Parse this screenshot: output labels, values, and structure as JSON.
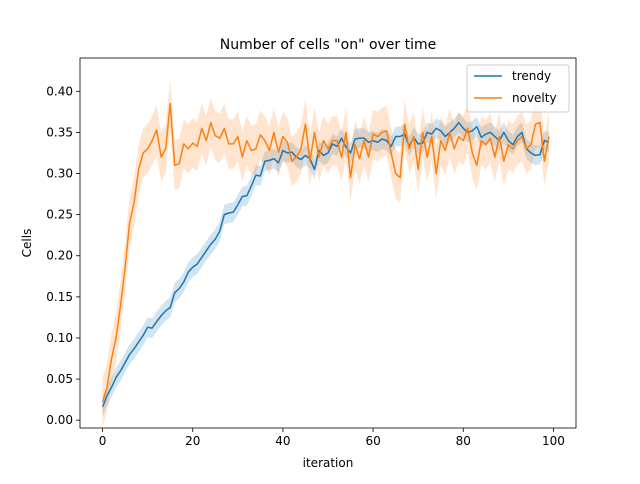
{
  "chart_data": {
    "type": "line",
    "title": "Number of cells \"on\" over time",
    "xlabel": "iteration",
    "ylabel": "Cells",
    "xlim": [
      -5,
      105
    ],
    "ylim": [
      -0.0095,
      0.4405
    ],
    "xticks": [
      0,
      20,
      40,
      60,
      80,
      100
    ],
    "xtick_labels": [
      "0",
      "20",
      "40",
      "60",
      "80",
      "100"
    ],
    "yticks": [
      0.0,
      0.05,
      0.1,
      0.15,
      0.2,
      0.25,
      0.3,
      0.35,
      0.4
    ],
    "ytick_labels": [
      "0.00",
      "0.05",
      "0.10",
      "0.15",
      "0.20",
      "0.25",
      "0.30",
      "0.35",
      "0.40"
    ],
    "grid": false,
    "legend_position": "top-right",
    "x": [
      0,
      1,
      2,
      3,
      4,
      5,
      6,
      7,
      8,
      9,
      10,
      11,
      12,
      13,
      14,
      15,
      16,
      17,
      18,
      19,
      20,
      21,
      22,
      23,
      24,
      25,
      26,
      27,
      28,
      29,
      30,
      31,
      32,
      33,
      34,
      35,
      36,
      37,
      38,
      39,
      40,
      41,
      42,
      43,
      44,
      45,
      46,
      47,
      48,
      49,
      50,
      51,
      52,
      53,
      54,
      55,
      56,
      57,
      58,
      59,
      60,
      61,
      62,
      63,
      64,
      65,
      66,
      67,
      68,
      69,
      70,
      71,
      72,
      73,
      74,
      75,
      76,
      77,
      78,
      79,
      80,
      81,
      82,
      83,
      84,
      85,
      86,
      87,
      88,
      89,
      90,
      91,
      92,
      93,
      94,
      95,
      96,
      97,
      98,
      99
    ],
    "series": [
      {
        "name": "trendy",
        "color": "#1f77b4",
        "band_half_width": 0.012,
        "values": [
          0.016,
          0.03,
          0.04,
          0.052,
          0.06,
          0.07,
          0.08,
          0.087,
          0.095,
          0.103,
          0.113,
          0.112,
          0.12,
          0.127,
          0.133,
          0.137,
          0.155,
          0.16,
          0.168,
          0.18,
          0.186,
          0.19,
          0.198,
          0.206,
          0.214,
          0.22,
          0.23,
          0.25,
          0.252,
          0.253,
          0.262,
          0.272,
          0.273,
          0.285,
          0.298,
          0.297,
          0.315,
          0.316,
          0.318,
          0.313,
          0.328,
          0.325,
          0.326,
          0.32,
          0.317,
          0.322,
          0.318,
          0.305,
          0.328,
          0.322,
          0.325,
          0.336,
          0.333,
          0.343,
          0.332,
          0.325,
          0.342,
          0.343,
          0.343,
          0.338,
          0.34,
          0.338,
          0.342,
          0.34,
          0.333,
          0.345,
          0.345,
          0.348,
          0.333,
          0.344,
          0.336,
          0.337,
          0.35,
          0.348,
          0.355,
          0.352,
          0.345,
          0.35,
          0.355,
          0.362,
          0.355,
          0.35,
          0.352,
          0.357,
          0.344,
          0.348,
          0.35,
          0.345,
          0.34,
          0.35,
          0.34,
          0.335,
          0.345,
          0.35,
          0.33,
          0.325,
          0.322,
          0.323,
          0.34,
          0.338
        ]
      },
      {
        "name": "novelty",
        "color": "#ff7f0e",
        "band_half_width": 0.03,
        "values": [
          0.022,
          0.04,
          0.075,
          0.1,
          0.14,
          0.185,
          0.24,
          0.265,
          0.305,
          0.325,
          0.33,
          0.34,
          0.353,
          0.32,
          0.33,
          0.385,
          0.31,
          0.312,
          0.336,
          0.33,
          0.337,
          0.333,
          0.355,
          0.34,
          0.362,
          0.346,
          0.343,
          0.355,
          0.336,
          0.336,
          0.345,
          0.32,
          0.34,
          0.328,
          0.33,
          0.347,
          0.34,
          0.328,
          0.35,
          0.326,
          0.345,
          0.338,
          0.315,
          0.32,
          0.33,
          0.36,
          0.315,
          0.35,
          0.32,
          0.34,
          0.33,
          0.34,
          0.34,
          0.32,
          0.35,
          0.295,
          0.335,
          0.318,
          0.34,
          0.32,
          0.348,
          0.345,
          0.35,
          0.352,
          0.325,
          0.3,
          0.295,
          0.36,
          0.33,
          0.345,
          0.305,
          0.35,
          0.32,
          0.345,
          0.3,
          0.34,
          0.328,
          0.35,
          0.33,
          0.345,
          0.34,
          0.355,
          0.325,
          0.31,
          0.34,
          0.335,
          0.343,
          0.32,
          0.345,
          0.315,
          0.335,
          0.33,
          0.34,
          0.345,
          0.33,
          0.335,
          0.36,
          0.362,
          0.315,
          0.345
        ]
      }
    ]
  }
}
